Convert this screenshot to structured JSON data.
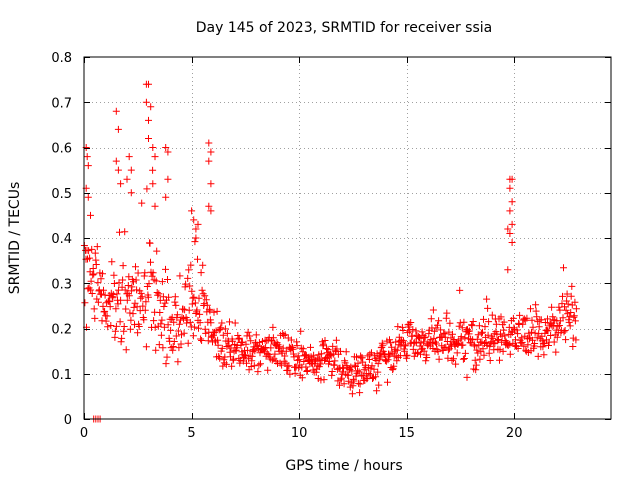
{
  "chart_data": {
    "type": "scatter",
    "title": "Day 145 of 2023, SRMTID for receiver ssia",
    "xlabel": "GPS time / hours",
    "ylabel": "SRMTID / TECUs",
    "xlim": [
      0,
      24.5
    ],
    "ylim": [
      0,
      0.8
    ],
    "x_ticks": [
      0,
      5,
      10,
      15,
      20
    ],
    "y_ticks": [
      0,
      0.1,
      0.2,
      0.3,
      0.4,
      0.5,
      0.6,
      0.7,
      0.8
    ],
    "x_tick_labels": [
      "0",
      "5",
      "10",
      "15",
      "20"
    ],
    "y_tick_labels": [
      "0",
      "0.1",
      "0.2",
      "0.3",
      "0.4",
      "0.5",
      "0.6",
      "0.7",
      "0.8"
    ],
    "grid": true,
    "marker": "plus",
    "color": "#ff0000",
    "envelope": {
      "note": "typical value and vertical spread of the point cloud at each hour (read off the figure)",
      "x": [
        0,
        0.5,
        1,
        1.5,
        2,
        2.5,
        3,
        3.5,
        4,
        4.5,
        5,
        5.5,
        6,
        6.5,
        7,
        7.5,
        8,
        8.5,
        9,
        9.5,
        10,
        10.5,
        11,
        11.5,
        12,
        12.5,
        13,
        13.5,
        14,
        14.5,
        15,
        15.5,
        16,
        16.5,
        17,
        17.5,
        18,
        18.5,
        19,
        19.5,
        20,
        20.5,
        21,
        21.5,
        22,
        22.5,
        23
      ],
      "center": [
        0.33,
        0.3,
        0.24,
        0.26,
        0.28,
        0.27,
        0.33,
        0.24,
        0.22,
        0.22,
        0.26,
        0.23,
        0.2,
        0.17,
        0.16,
        0.14,
        0.14,
        0.15,
        0.16,
        0.14,
        0.13,
        0.12,
        0.13,
        0.14,
        0.1,
        0.1,
        0.11,
        0.12,
        0.14,
        0.15,
        0.17,
        0.17,
        0.17,
        0.17,
        0.16,
        0.17,
        0.17,
        0.17,
        0.17,
        0.18,
        0.19,
        0.19,
        0.18,
        0.19,
        0.21,
        0.23,
        0.22
      ],
      "spread": [
        0.14,
        0.11,
        0.07,
        0.14,
        0.14,
        0.1,
        0.17,
        0.14,
        0.12,
        0.09,
        0.1,
        0.08,
        0.07,
        0.06,
        0.05,
        0.05,
        0.05,
        0.05,
        0.05,
        0.05,
        0.05,
        0.05,
        0.05,
        0.04,
        0.04,
        0.04,
        0.04,
        0.05,
        0.05,
        0.05,
        0.05,
        0.05,
        0.05,
        0.06,
        0.06,
        0.06,
        0.06,
        0.06,
        0.06,
        0.06,
        0.06,
        0.06,
        0.06,
        0.06,
        0.06,
        0.06,
        0.06
      ]
    },
    "spike_points": [
      [
        0.1,
        0.6
      ],
      [
        0.15,
        0.58
      ],
      [
        0.2,
        0.56
      ],
      [
        0.1,
        0.51
      ],
      [
        0.2,
        0.49
      ],
      [
        0.3,
        0.45
      ],
      [
        1.5,
        0.68
      ],
      [
        1.6,
        0.64
      ],
      [
        1.5,
        0.57
      ],
      [
        1.6,
        0.55
      ],
      [
        1.7,
        0.52
      ],
      [
        2.1,
        0.58
      ],
      [
        2.2,
        0.55
      ],
      [
        2.0,
        0.53
      ],
      [
        2.2,
        0.5
      ],
      [
        2.9,
        0.74
      ],
      [
        3.0,
        0.74
      ],
      [
        2.9,
        0.7
      ],
      [
        3.1,
        0.69
      ],
      [
        3.0,
        0.66
      ],
      [
        3.0,
        0.62
      ],
      [
        3.2,
        0.6
      ],
      [
        3.3,
        0.58
      ],
      [
        3.2,
        0.52
      ],
      [
        3.3,
        0.47
      ],
      [
        3.8,
        0.6
      ],
      [
        3.9,
        0.59
      ],
      [
        3.9,
        0.53
      ],
      [
        3.8,
        0.49
      ],
      [
        5.0,
        0.46
      ],
      [
        5.1,
        0.44
      ],
      [
        5.2,
        0.42
      ],
      [
        5.3,
        0.43
      ],
      [
        5.2,
        0.4
      ],
      [
        5.8,
        0.61
      ],
      [
        5.9,
        0.59
      ],
      [
        5.8,
        0.57
      ],
      [
        5.9,
        0.52
      ],
      [
        5.8,
        0.47
      ],
      [
        5.9,
        0.46
      ],
      [
        19.8,
        0.53
      ],
      [
        19.9,
        0.53
      ],
      [
        19.8,
        0.51
      ],
      [
        19.9,
        0.48
      ],
      [
        19.8,
        0.46
      ],
      [
        19.9,
        0.43
      ],
      [
        19.7,
        0.42
      ],
      [
        19.8,
        0.41
      ],
      [
        19.9,
        0.39
      ],
      [
        19.7,
        0.33
      ]
    ],
    "zero_points": [
      [
        0.45,
        0.0
      ],
      [
        0.55,
        0.0
      ],
      [
        0.65,
        0.0
      ],
      [
        0.75,
        0.0
      ]
    ]
  }
}
